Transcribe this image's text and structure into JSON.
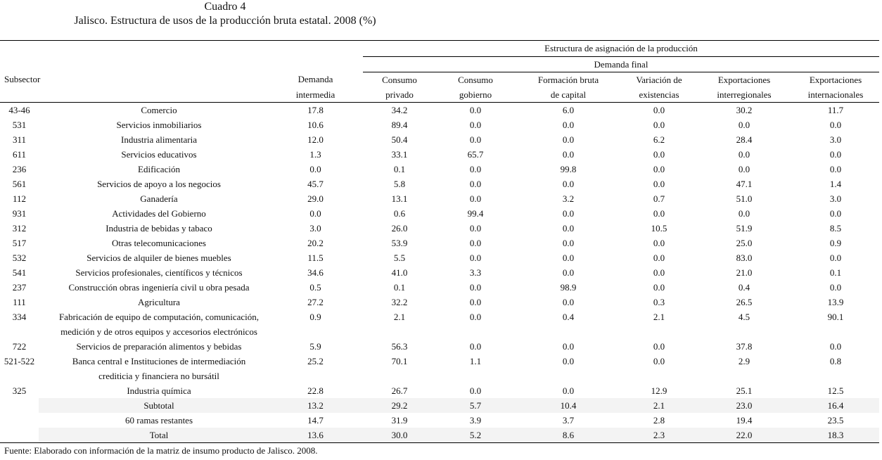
{
  "title": "Cuadro 4",
  "subtitle": "Jalisco. Estructura de usos de la producción bruta estatal. 2008 (%)",
  "header": {
    "group": "Estructura de asignación de la producción",
    "subgroup": "Demanda final",
    "subsector": "Subsector",
    "cols": [
      [
        "Demanda",
        "intermedia"
      ],
      [
        "Consumo",
        "privado"
      ],
      [
        "Consumo",
        "gobierno"
      ],
      [
        "Formación bruta",
        "de capital"
      ],
      [
        "Variación de",
        "existencias"
      ],
      [
        "Exportaciones",
        "interregionales"
      ],
      [
        "Exportaciones",
        "internacionales"
      ]
    ]
  },
  "rows": [
    {
      "code": "43-46",
      "name": [
        "Comercio"
      ],
      "values": [
        "17.8",
        "34.2",
        "0.0",
        "6.0",
        "0.0",
        "30.2",
        "11.7"
      ]
    },
    {
      "code": "531",
      "name": [
        "Servicios inmobiliarios"
      ],
      "values": [
        "10.6",
        "89.4",
        "0.0",
        "0.0",
        "0.0",
        "0.0",
        "0.0"
      ]
    },
    {
      "code": "311",
      "name": [
        "Industria alimentaria"
      ],
      "values": [
        "12.0",
        "50.4",
        "0.0",
        "0.0",
        "6.2",
        "28.4",
        "3.0"
      ]
    },
    {
      "code": "611",
      "name": [
        "Servicios educativos"
      ],
      "values": [
        "1.3",
        "33.1",
        "65.7",
        "0.0",
        "0.0",
        "0.0",
        "0.0"
      ]
    },
    {
      "code": "236",
      "name": [
        "Edificación"
      ],
      "values": [
        "0.0",
        "0.1",
        "0.0",
        "99.8",
        "0.0",
        "0.0",
        "0.0"
      ]
    },
    {
      "code": "561",
      "name": [
        "Servicios de apoyo a los negocios"
      ],
      "values": [
        "45.7",
        "5.8",
        "0.0",
        "0.0",
        "0.0",
        "47.1",
        "1.4"
      ]
    },
    {
      "code": "112",
      "name": [
        "Ganadería"
      ],
      "values": [
        "29.0",
        "13.1",
        "0.0",
        "3.2",
        "0.7",
        "51.0",
        "3.0"
      ]
    },
    {
      "code": "931",
      "name": [
        "Actividades del Gobierno"
      ],
      "values": [
        "0.0",
        "0.6",
        "99.4",
        "0.0",
        "0.0",
        "0.0",
        "0.0"
      ]
    },
    {
      "code": "312",
      "name": [
        "Industria de bebidas y tabaco"
      ],
      "values": [
        "3.0",
        "26.0",
        "0.0",
        "0.0",
        "10.5",
        "51.9",
        "8.5"
      ]
    },
    {
      "code": "517",
      "name": [
        "Otras telecomunicaciones"
      ],
      "values": [
        "20.2",
        "53.9",
        "0.0",
        "0.0",
        "0.0",
        "25.0",
        "0.9"
      ]
    },
    {
      "code": "532",
      "name": [
        "Servicios de alquiler de bienes muebles"
      ],
      "values": [
        "11.5",
        "5.5",
        "0.0",
        "0.0",
        "0.0",
        "83.0",
        "0.0"
      ]
    },
    {
      "code": "541",
      "name": [
        "Servicios profesionales, científicos y técnicos"
      ],
      "values": [
        "34.6",
        "41.0",
        "3.3",
        "0.0",
        "0.0",
        "21.0",
        "0.1"
      ]
    },
    {
      "code": "237",
      "name": [
        "Construcción obras ingeniería civil u obra pesada"
      ],
      "values": [
        "0.5",
        "0.1",
        "0.0",
        "98.9",
        "0.0",
        "0.4",
        "0.0"
      ]
    },
    {
      "code": "111",
      "name": [
        "Agricultura"
      ],
      "values": [
        "27.2",
        "32.2",
        "0.0",
        "0.0",
        "0.3",
        "26.5",
        "13.9"
      ]
    },
    {
      "code": "334",
      "name": [
        "Fabricación de equipo de computación, comunicación,",
        "medición y de otros equipos y accesorios electrónicos"
      ],
      "values": [
        "0.9",
        "2.1",
        "0.0",
        "0.4",
        "2.1",
        "4.5",
        "90.1"
      ]
    },
    {
      "code": "722",
      "name": [
        "Servicios de preparación alimentos y bebidas"
      ],
      "values": [
        "5.9",
        "56.3",
        "0.0",
        "0.0",
        "0.0",
        "37.8",
        "0.0"
      ]
    },
    {
      "code": "521-522",
      "name": [
        "Banca central e Instituciones de intermediación",
        "crediticia y financiera no bursátil"
      ],
      "values": [
        "25.2",
        "70.1",
        "1.1",
        "0.0",
        "0.0",
        "2.9",
        "0.8"
      ]
    },
    {
      "code": "325",
      "name": [
        "Industria química"
      ],
      "values": [
        "22.8",
        "26.7",
        "0.0",
        "0.0",
        "12.9",
        "25.1",
        "12.5"
      ]
    },
    {
      "code": "",
      "name": [
        "Subtotal"
      ],
      "values": [
        "13.2",
        "29.2",
        "5.7",
        "10.4",
        "2.1",
        "23.0",
        "16.4"
      ],
      "shade": true
    },
    {
      "code": "",
      "name": [
        "60 ramas restantes"
      ],
      "values": [
        "14.7",
        "31.9",
        "3.9",
        "3.7",
        "2.8",
        "19.4",
        "23.5"
      ]
    },
    {
      "code": "",
      "name": [
        "Total"
      ],
      "values": [
        "13.6",
        "30.0",
        "5.2",
        "8.6",
        "2.3",
        "22.0",
        "18.3"
      ],
      "shade": true
    }
  ],
  "footnote": "Fuente: Elaborado con información de la matriz de insumo producto de Jalisco. 2008."
}
